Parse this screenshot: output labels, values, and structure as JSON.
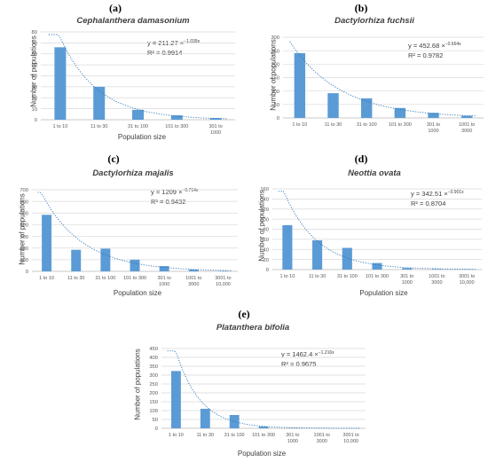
{
  "chart_data": [
    {
      "type": "bar",
      "panel_label": "(a)",
      "title": "Cephalanthera damasonium",
      "xlabel": "Population size",
      "ylabel": "Number of populations",
      "categories": [
        "1 to 10",
        "11 to 30",
        "31 to 100",
        "101 to 300",
        "301 to 1000"
      ],
      "values": [
        66,
        30,
        9,
        4,
        1.5
      ],
      "ylim": [
        0,
        80
      ],
      "yticks": [
        0,
        10,
        20,
        30,
        40,
        50,
        60,
        70,
        80
      ],
      "trendline": {
        "type": "exponential",
        "a": 211.27,
        "b": -1.039
      },
      "equation": {
        "prefix": "y = 211.27 ×",
        "exponent": "−1.039x"
      },
      "r2_text": "R² = 0.9914",
      "color": "#5b9bd5",
      "grid": true
    },
    {
      "type": "bar",
      "panel_label": "(b)",
      "title": "Dactylorhiza fuchsii",
      "xlabel": "",
      "ylabel": "Number of populations",
      "categories": [
        "1 to 10",
        "11 to 30",
        "31 to 100",
        "101 to 300",
        "301 to 1000",
        "1001 to 3000"
      ],
      "values": [
        241,
        92,
        73,
        37,
        19,
        8
      ],
      "ylim": [
        0,
        300
      ],
      "yticks": [
        0,
        50,
        100,
        150,
        200,
        250,
        300
      ],
      "trendline": {
        "type": "exponential",
        "a": 452.68,
        "b": -0.664
      },
      "equation": {
        "prefix": "y = 452.68 ×",
        "exponent": "−0.664x"
      },
      "r2_text": "R² = 0.9782",
      "color": "#5b9bd5",
      "grid": true
    },
    {
      "type": "bar",
      "panel_label": "(c)",
      "title": "Dactylorhiza majalis",
      "xlabel": "Population size",
      "ylabel": "Number of populations",
      "categories": [
        "1 to 10",
        "11 to 30",
        "31 to 100",
        "101 to 300",
        "301 to 1000",
        "1001 to 3000",
        "3001 to 10,000"
      ],
      "values": [
        485,
        185,
        195,
        100,
        45,
        15,
        3
      ],
      "ylim": [
        0,
        700
      ],
      "yticks": [
        0,
        100,
        200,
        300,
        400,
        500,
        600,
        700
      ],
      "trendline": {
        "type": "exponential",
        "a": 1209,
        "b": -0.714
      },
      "equation": {
        "prefix": "y = 1209 ×",
        "exponent": "−0.714x"
      },
      "r2_text": "R² = 0.9432",
      "color": "#5b9bd5",
      "grid": true
    },
    {
      "type": "bar",
      "panel_label": "(d)",
      "title": "Neottia ovata",
      "xlabel": "Population size",
      "ylabel": "Number of populations",
      "categories": [
        "1 to 10",
        "11 to 30",
        "31 to 100",
        "101 to 300",
        "301 to 1000",
        "1001 to 3000",
        "3001 to 10,000"
      ],
      "values": [
        88,
        58,
        43,
        13,
        3,
        1,
        0.5
      ],
      "ylim": [
        0,
        160
      ],
      "yticks": [
        0,
        20,
        40,
        60,
        80,
        100,
        120,
        140,
        160
      ],
      "trendline": {
        "type": "exponential",
        "a": 342.51,
        "b": -0.901
      },
      "equation": {
        "prefix": "y = 342.51 ×",
        "exponent": "−0.901x"
      },
      "r2_text": "R² = 0.8704",
      "color": "#5b9bd5",
      "grid": true
    },
    {
      "type": "bar",
      "panel_label": "(e)",
      "title": "Platanthera bifolia",
      "xlabel": "Population size",
      "ylabel": "Number of populations",
      "categories": [
        "1 to 10",
        "11 to 30",
        "31 to 100",
        "101 to 300",
        "301 to 1000",
        "1001 to 3000",
        "3001 to 10,000"
      ],
      "values": [
        323,
        110,
        75,
        10,
        2,
        1,
        0.5
      ],
      "ylim": [
        0,
        450
      ],
      "yticks": [
        0,
        50,
        100,
        150,
        200,
        250,
        300,
        350,
        400,
        450
      ],
      "trendline": {
        "type": "exponential",
        "a": 1462.4,
        "b": -1.216
      },
      "equation": {
        "prefix": "y = 1462.4 ×",
        "exponent": "−1.216x"
      },
      "r2_text": "R² = 0.9675",
      "color": "#5b9bd5",
      "grid": true
    }
  ]
}
